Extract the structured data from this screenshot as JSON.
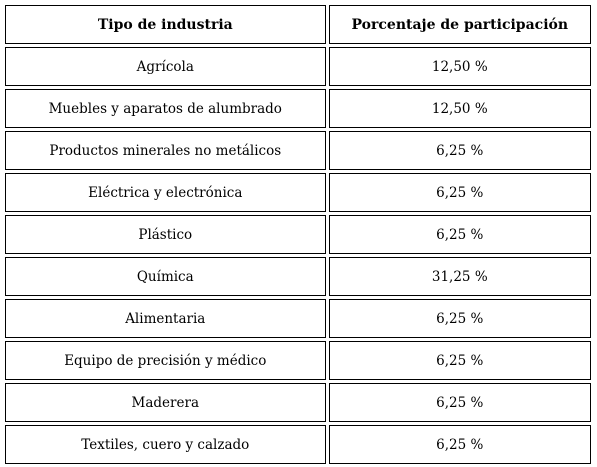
{
  "table": {
    "headers": [
      "Tipo de industria",
      "Porcentaje de participación"
    ],
    "rows": [
      [
        "Agrícola",
        "12,50 %"
      ],
      [
        "Muebles y aparatos de alumbrado",
        "12,50 %"
      ],
      [
        "Productos minerales no metálicos",
        "6,25 %"
      ],
      [
        "Eléctrica y electrónica",
        "6,25 %"
      ],
      [
        "Plástico",
        "6,25 %"
      ],
      [
        "Química",
        "31,25 %"
      ],
      [
        "Alimentaria",
        "6,25 %"
      ],
      [
        "Equipo de precisión y médico",
        "6,25 %"
      ],
      [
        "Maderera",
        "6,25 %"
      ],
      [
        "Textiles, cuero y calzado",
        "6,25 %"
      ]
    ]
  }
}
